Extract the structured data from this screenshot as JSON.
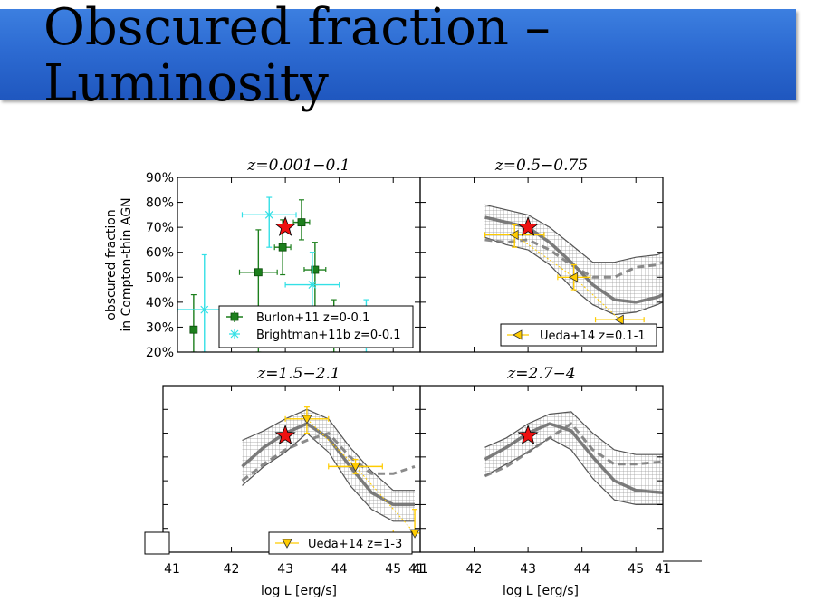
{
  "slide": {
    "title_line1": "Obscured fraction –",
    "title_line2": "Luminosity"
  },
  "colors": {
    "title_bar": "#2d6bd2",
    "burlon": "#1c7f1c",
    "brightman": "#33e0e6",
    "ueda": "#ffcc00",
    "star": "#ee1111",
    "model_band": "#444444"
  },
  "chart_data": [
    {
      "type": "scatter",
      "panel": "top-left",
      "title": "z=0.001−0.1",
      "xlim": [
        41,
        45.5
      ],
      "ylim": [
        0.2,
        0.9
      ],
      "yticks": [
        "20%",
        "30%",
        "40%",
        "50%",
        "60%",
        "70%",
        "80%",
        "90%"
      ],
      "ylabel_line1": "obscured fraction",
      "ylabel_line2": "in Compton-thin AGN",
      "legend_position": "bottom",
      "series": [
        {
          "name": "Burlon+11 z=0-0.1",
          "marker": "square",
          "points": [
            {
              "x": 42.5,
              "y": 0.52,
              "xerr": 0.35,
              "ylo": 0.2,
              "yhi": 0.69
            },
            {
              "x": 42.95,
              "y": 0.62,
              "xerr": 0.15,
              "ylo": 0.51,
              "yhi": 0.73
            },
            {
              "x": 43.3,
              "y": 0.72,
              "xerr": 0.15,
              "ylo": 0.65,
              "yhi": 0.81
            },
            {
              "x": 43.55,
              "y": 0.53,
              "xerr": 0.2,
              "ylo": 0.33,
              "yhi": 0.64
            },
            {
              "x": 41.3,
              "y": 0.29,
              "xerr": 0,
              "ylo": 0.2,
              "yhi": 0.43
            },
            {
              "x": 43.9,
              "y": 0.32,
              "xerr": 0,
              "ylo": 0.2,
              "yhi": 0.41
            }
          ]
        },
        {
          "name": "Brightman+11b z=0-0.1",
          "marker": "star",
          "points": [
            {
              "x": 41.5,
              "y": 0.37,
              "xerr": 0.5,
              "ylo": 0.2,
              "yhi": 0.59
            },
            {
              "x": 42.7,
              "y": 0.75,
              "xerr": 0.5,
              "ylo": 0.62,
              "yhi": 0.82
            },
            {
              "x": 43.5,
              "y": 0.47,
              "xerr": 0.5,
              "ylo": 0.37,
              "yhi": 0.6
            },
            {
              "x": 44.5,
              "y": 0.33,
              "xerr": 0.3,
              "ylo": 0.2,
              "yhi": 0.41
            }
          ]
        },
        {
          "name": "red-star",
          "marker": "bigstar",
          "points": [
            {
              "x": 43.0,
              "y": 0.7
            }
          ]
        }
      ]
    },
    {
      "type": "line",
      "panel": "top-right",
      "title": "z=0.5−0.75",
      "xlim": [
        41,
        45.5
      ],
      "ylim": [
        0.2,
        0.9
      ],
      "legend_position": "bottom-right",
      "model_x": [
        42.2,
        42.6,
        43.0,
        43.4,
        43.8,
        44.2,
        44.6,
        45.0,
        45.4,
        45.5
      ],
      "model_mid": [
        0.74,
        0.72,
        0.7,
        0.64,
        0.56,
        0.47,
        0.41,
        0.4,
        0.42,
        0.43
      ],
      "model_lo": [
        0.66,
        0.63,
        0.61,
        0.55,
        0.46,
        0.39,
        0.35,
        0.36,
        0.39,
        0.4
      ],
      "model_hi": [
        0.79,
        0.77,
        0.75,
        0.7,
        0.63,
        0.56,
        0.56,
        0.58,
        0.59,
        0.6
      ],
      "model_dash": [
        0.65,
        0.64,
        0.65,
        0.61,
        0.55,
        0.5,
        0.5,
        0.54,
        0.55,
        0.56
      ],
      "series": [
        {
          "name": "Ueda+14 z=0.1-1",
          "marker": "triangle-left",
          "points": [
            {
              "x": 42.75,
              "y": 0.67,
              "xerr": 0.55,
              "ylo": 0.62,
              "yhi": 0.71
            },
            {
              "x": 43.85,
              "y": 0.5,
              "xerr": 0.3,
              "ylo": 0.45,
              "yhi": 0.55
            },
            {
              "x": 44.7,
              "y": 0.33,
              "xerr": 0.45,
              "ylo": 0.33,
              "yhi": 0.33
            }
          ]
        },
        {
          "name": "red-star",
          "marker": "bigstar",
          "points": [
            {
              "x": 43.0,
              "y": 0.7
            }
          ]
        }
      ]
    },
    {
      "type": "line",
      "panel": "bottom-left",
      "title": "z=1.5−2.1",
      "xlim": [
        41,
        45.5
      ],
      "ylim": [
        0.2,
        0.9
      ],
      "xticks": [
        "41",
        "42",
        "43",
        "44",
        "45"
      ],
      "xlabel": "log L [erg/s]",
      "legend_position": "bottom-right",
      "model_x": [
        42.2,
        42.6,
        43.0,
        43.4,
        43.8,
        44.2,
        44.6,
        45.0,
        45.4
      ],
      "model_mid": [
        0.56,
        0.64,
        0.7,
        0.74,
        0.68,
        0.56,
        0.45,
        0.4,
        0.4
      ],
      "model_lo": [
        0.48,
        0.56,
        0.62,
        0.7,
        0.62,
        0.48,
        0.38,
        0.33,
        0.33
      ],
      "model_hi": [
        0.67,
        0.71,
        0.76,
        0.8,
        0.76,
        0.64,
        0.54,
        0.46,
        0.46
      ],
      "model_dash": [
        0.5,
        0.57,
        0.63,
        0.67,
        0.7,
        0.6,
        0.53,
        0.53,
        0.56
      ],
      "series": [
        {
          "name": "Ueda+14 z=1-3",
          "marker": "triangle-down",
          "points": [
            {
              "x": 43.4,
              "y": 0.76,
              "xerr": 0.4,
              "ylo": 0.7,
              "yhi": 0.81
            },
            {
              "x": 44.3,
              "y": 0.56,
              "xerr": 0.5,
              "ylo": 0.53,
              "yhi": 0.59
            },
            {
              "x": 45.4,
              "y": 0.28,
              "xerr": 0.4,
              "ylo": 0.28,
              "yhi": 0.38
            }
          ]
        },
        {
          "name": "red-star",
          "marker": "bigstar",
          "points": [
            {
              "x": 43.0,
              "y": 0.69
            }
          ]
        }
      ]
    },
    {
      "type": "line",
      "panel": "bottom-right",
      "title": "z=2.7−4",
      "xlim": [
        41,
        45.5
      ],
      "ylim": [
        0.2,
        0.9
      ],
      "xticks": [
        "41",
        "42",
        "43",
        "44",
        "45"
      ],
      "xlabel": "log L [erg/s]",
      "model_x": [
        42.2,
        42.6,
        43.0,
        43.4,
        43.8,
        44.2,
        44.6,
        45.0,
        45.5
      ],
      "model_mid": [
        0.59,
        0.64,
        0.7,
        0.74,
        0.71,
        0.6,
        0.5,
        0.46,
        0.45
      ],
      "model_lo": [
        0.52,
        0.57,
        0.62,
        0.68,
        0.63,
        0.51,
        0.42,
        0.4,
        0.4
      ],
      "model_hi": [
        0.64,
        0.68,
        0.74,
        0.78,
        0.79,
        0.7,
        0.63,
        0.61,
        0.61
      ],
      "model_dash": [
        0.52,
        0.56,
        0.62,
        0.68,
        0.74,
        0.63,
        0.57,
        0.57,
        0.58
      ],
      "series": [
        {
          "name": "red-star",
          "marker": "bigstar",
          "points": [
            {
              "x": 43.0,
              "y": 0.69
            }
          ]
        }
      ]
    }
  ]
}
